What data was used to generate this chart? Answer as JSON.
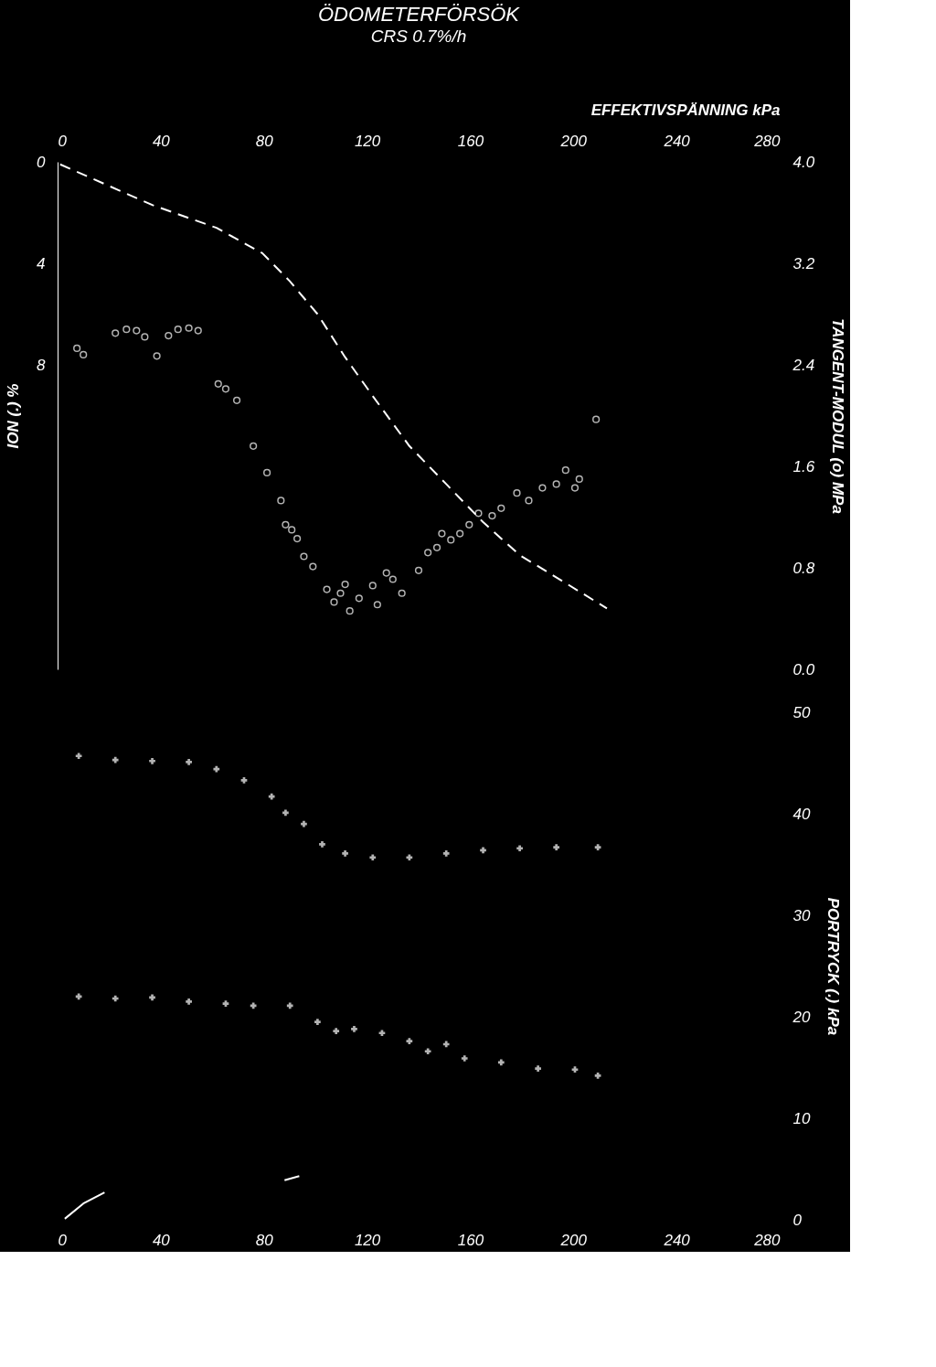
{
  "chart_data": [
    {
      "type": "scatter",
      "title": "ÖDOMETERFÖRSÖK",
      "subtitle": "CRS        0.7%/h",
      "xlabel": "EFFEKTIVSPÄNNING kPa",
      "ylabel": "ION (.) %",
      "y2label": "TANGENT-MODUL (o) MPa",
      "xlim": [
        0,
        280
      ],
      "xticks": [
        0,
        40,
        80,
        120,
        160,
        200,
        240,
        280
      ],
      "ylim": [
        20,
        0
      ],
      "yticks": [
        0,
        4,
        8
      ],
      "y2lim": [
        0,
        4.0
      ],
      "y2ticks": [
        {
          "value": 0,
          "label": "0.0"
        },
        0.8,
        1.6,
        2.4,
        3.2,
        {
          "value": 4,
          "label": "4.0"
        }
      ],
      "grid": false,
      "series": [
        {
          "type": "line",
          "line_style": "dashed",
          "color": "#ffffff",
          "x": [
            1,
            36.7,
            61.6,
            79.4,
            90,
            100.8,
            111.5,
            122,
            136.4,
            150.7,
            165,
            179.2,
            197,
            213
          ],
          "values": [
            0.1,
            1.7,
            2.6,
            3.6,
            4.7,
            6.0,
            7.7,
            9.2,
            11.2,
            12.7,
            14.2,
            15.5,
            16.6,
            17.6
          ]
        },
        {
          "axis": "y2",
          "marker": "circle",
          "color": "#ffffff",
          "x": [
            7.5,
            10,
            22.4,
            26.7,
            30.6,
            33.8,
            38.5,
            43,
            46.7,
            50.9,
            54.5,
            62.3,
            65.2,
            69.5,
            75.9,
            81.2,
            86.6,
            88.4,
            90.8,
            92.9,
            95.5,
            99,
            104.4,
            107.2,
            109.7,
            113.3,
            111.5,
            116.9,
            122.2,
            124,
            127.5,
            130,
            133.5,
            140,
            143.6,
            147.1,
            149,
            152.5,
            156,
            159.6,
            163.2,
            168.5,
            172,
            178.1,
            182.7,
            188,
            193.4,
            197,
            200.6,
            202.3,
            208.8
          ],
          "values": [
            2.53,
            2.48,
            2.65,
            2.68,
            2.67,
            2.62,
            2.47,
            2.63,
            2.68,
            2.69,
            2.67,
            2.25,
            2.21,
            2.12,
            1.76,
            1.55,
            1.33,
            1.14,
            1.1,
            1.03,
            0.89,
            0.81,
            0.63,
            0.53,
            0.6,
            0.46,
            0.67,
            0.56,
            0.66,
            0.51,
            0.76,
            0.71,
            0.6,
            0.78,
            0.92,
            0.96,
            1.07,
            1.02,
            1.07,
            1.14,
            1.23,
            1.21,
            1.27,
            1.39,
            1.33,
            1.43,
            1.46,
            1.57,
            1.43,
            1.5,
            1.97
          ]
        }
      ]
    },
    {
      "type": "scatter",
      "xlim": [
        0,
        280
      ],
      "xticks": [
        0,
        40,
        80,
        120,
        160,
        200,
        240,
        280
      ],
      "y2label": "PORTRYCK (.) kPa",
      "y2lim": [
        0,
        50
      ],
      "y2ticks": [
        0,
        10,
        20,
        30,
        40,
        50
      ],
      "grid": false,
      "series": [
        {
          "axis": "y2",
          "marker": "cross",
          "color": "#ffffff",
          "x": [
            8.2,
            22.4,
            36.7,
            50.9,
            61.6,
            72.3,
            83,
            88.4,
            95.5,
            102.6,
            111.5,
            122.2,
            136.4,
            150.7,
            165,
            179.2,
            193.4,
            209.5
          ],
          "values": [
            45.7,
            45.3,
            45.2,
            45.1,
            44.4,
            43.3,
            41.7,
            40.1,
            39.0,
            37.0,
            36.1,
            35.7,
            35.7,
            36.1,
            36.4,
            36.6,
            36.7,
            36.7
          ]
        },
        {
          "axis": "y2",
          "marker": "cross",
          "color": "#ffffff",
          "x": [
            8.2,
            22.4,
            36.7,
            50.9,
            65.2,
            75.9,
            90.1,
            100.8,
            108,
            115,
            125.8,
            136.4,
            143.6,
            150.7,
            157.8,
            172,
            186.3,
            200.6,
            209.5
          ],
          "values": [
            22.0,
            21.8,
            21.9,
            21.5,
            21.3,
            21.1,
            21.1,
            19.5,
            18.6,
            18.8,
            18.4,
            17.6,
            16.6,
            17.3,
            15.9,
            15.5,
            14.9,
            14.8,
            14.2
          ]
        },
        {
          "type": "line",
          "axis": "y2",
          "line_style": "solid",
          "color": "#ffffff",
          "x": [
            2.8,
            10,
            18.2
          ],
          "values": [
            0.1,
            1.6,
            2.7
          ]
        },
        {
          "type": "line",
          "axis": "y2",
          "line_style": "solid",
          "color": "#ffffff",
          "x": [
            88,
            93.7
          ],
          "values": [
            3.9,
            4.3
          ]
        }
      ]
    }
  ]
}
